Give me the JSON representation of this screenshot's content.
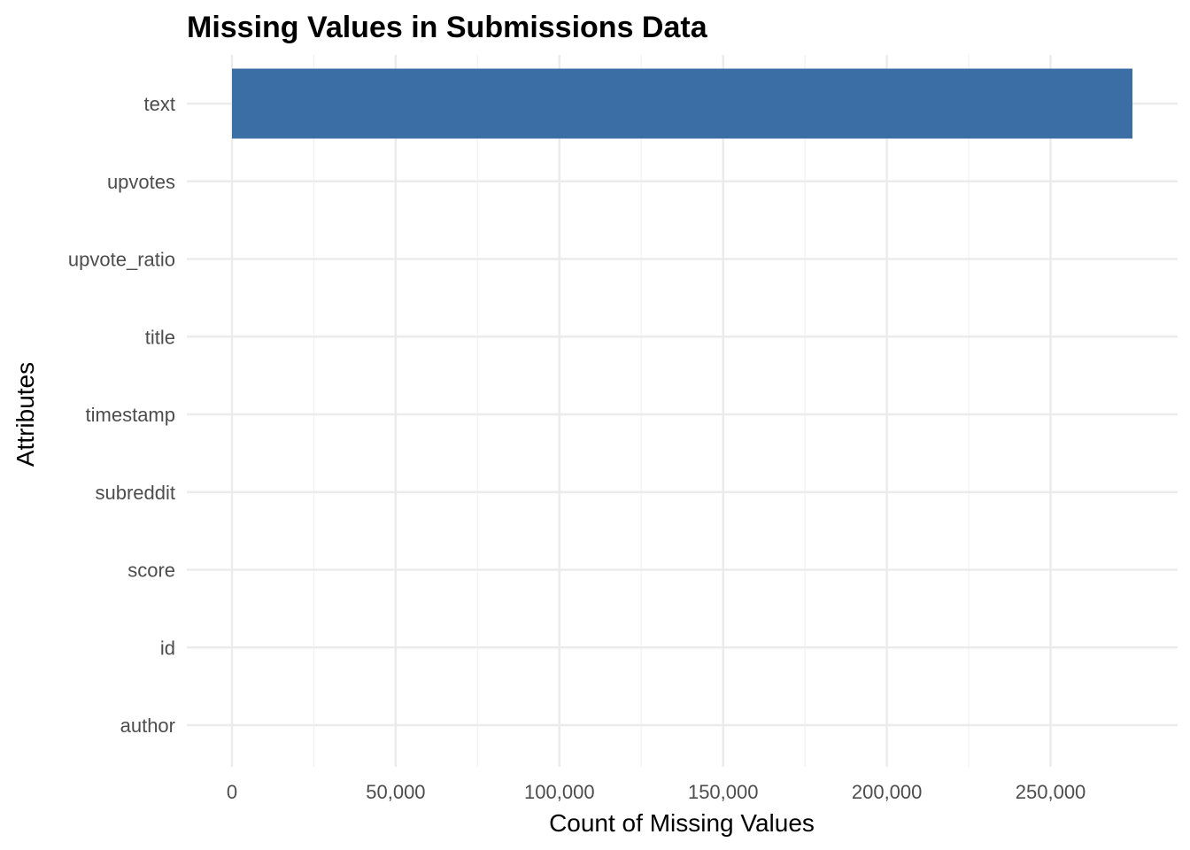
{
  "chart_data": {
    "type": "bar",
    "orientation": "horizontal",
    "title": "Missing Values in Submissions Data",
    "xlabel": "Count of Missing Values",
    "ylabel": "Attributes",
    "categories": [
      "text",
      "upvotes",
      "upvote_ratio",
      "title",
      "timestamp",
      "subreddit",
      "score",
      "id",
      "author"
    ],
    "values": [
      275000,
      0,
      0,
      0,
      0,
      0,
      0,
      0,
      0
    ],
    "xlim": [
      0,
      275000
    ],
    "x_ticks": [
      0,
      50000,
      100000,
      150000,
      200000,
      250000
    ],
    "x_tick_labels": [
      "0",
      "50,000",
      "100,000",
      "150,000",
      "200,000",
      "250,000"
    ],
    "bar_color": "#3a6ea5",
    "grid": true,
    "legend": "none"
  }
}
